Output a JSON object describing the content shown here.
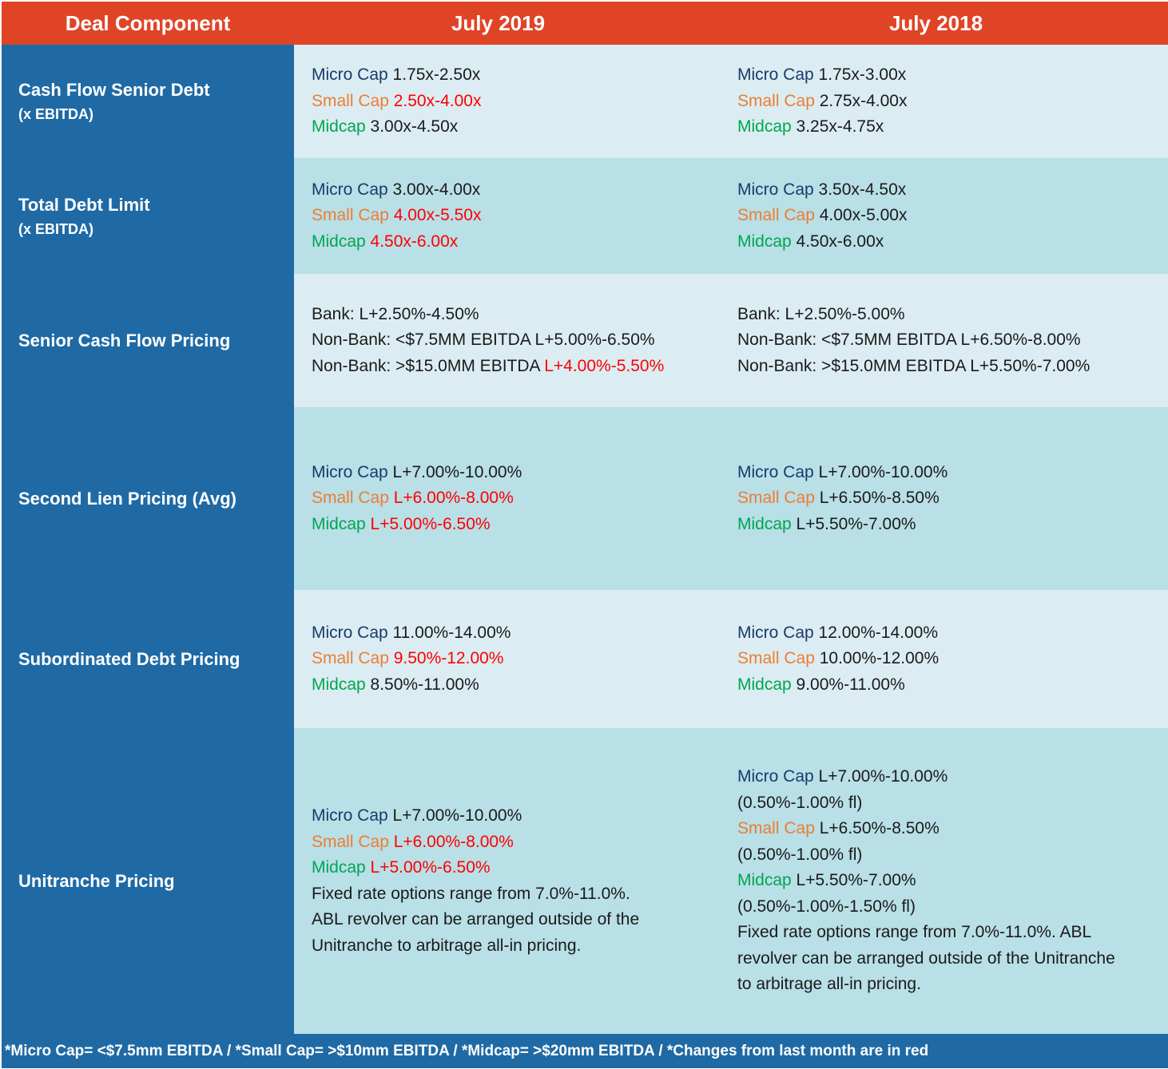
{
  "header": {
    "col1": "Deal Component",
    "col2": "July  2019",
    "col3": "July 2018"
  },
  "labels": {
    "micro": "Micro Cap",
    "small": "Small Cap",
    "mid": "Midcap"
  },
  "rows": {
    "cash_flow_senior": {
      "label": "Cash Flow Senior Debt",
      "sub": "(x EBITDA)",
      "y2019": {
        "micro": "1.75x-2.50x",
        "small": "2.50x-4.00x",
        "mid": "3.00x-4.50x"
      },
      "y2018": {
        "micro": "1.75x-3.00x",
        "small": "2.75x-4.00x",
        "mid": "3.25x-4.75x"
      }
    },
    "total_debt": {
      "label": "Total Debt Limit",
      "sub": "(x EBITDA)",
      "y2019": {
        "micro": "3.00x-4.00x",
        "small": "4.00x-5.50x",
        "mid": "4.50x-6.00x"
      },
      "y2018": {
        "micro": "3.50x-4.50x",
        "small": "4.00x-5.00x",
        "mid": "4.50x-6.00x"
      }
    },
    "senior_pricing": {
      "label": "Senior Cash Flow Pricing",
      "y2019": {
        "bank": "Bank: L+2.50%-4.50%",
        "nonbank1": "Non-Bank: <$7.5MM EBITDA L+5.00%-6.50%",
        "nonbank2_prefix": "Non-Bank: >$15.0MM EBITDA ",
        "nonbank2_value": "L+4.00%-5.50%"
      },
      "y2018": {
        "bank": "Bank: L+2.50%-5.00%",
        "nonbank1": "Non-Bank: <$7.5MM EBITDA L+6.50%-8.00%",
        "nonbank2": "Non-Bank: >$15.0MM EBITDA L+5.50%-7.00%"
      }
    },
    "second_lien": {
      "label": "Second Lien Pricing (Avg)",
      "y2019": {
        "micro": "L+7.00%-10.00%",
        "small": "L+6.00%-8.00%",
        "mid": "L+5.00%-6.50%"
      },
      "y2018": {
        "micro": "L+7.00%-10.00%",
        "small": "L+6.50%-8.50%",
        "mid": "L+5.50%-7.00%"
      }
    },
    "subordinated": {
      "label": "Subordinated Debt Pricing",
      "y2019": {
        "micro": "11.00%-14.00%",
        "small": "9.50%-12.00%",
        "mid": "8.50%-11.00%"
      },
      "y2018": {
        "micro": "12.00%-14.00%",
        "small": "10.00%-12.00%",
        "mid": "9.00%-11.00%"
      }
    },
    "unitranche": {
      "label": "Unitranche Pricing",
      "y2019": {
        "micro": "L+7.00%-10.00%",
        "small": "L+6.00%-8.00%",
        "mid": "L+5.00%-6.50%",
        "note1": "Fixed rate options range from 7.0%-11.0%.",
        "note2": "ABL revolver can be arranged outside of the",
        "note3": "Unitranche to arbitrage all-in pricing."
      },
      "y2018": {
        "micro": "L+7.00%-10.00%",
        "micro_fl": "(0.50%-1.00% fl)",
        "small": "L+6.50%-8.50%",
        "small_fl": "(0.50%-1.00% fl)",
        "mid": "L+5.50%-7.00%",
        "mid_fl": "(0.50%-1.00%-1.50% fl)",
        "note1": "Fixed rate options range from 7.0%-11.0%. ABL",
        "note2": "revolver can be arranged outside of the Unitranche",
        "note3": "to arbitrage all-in pricing."
      }
    }
  },
  "footer": "*Micro Cap= <$7.5mm EBITDA / *Small Cap= >$10mm EBITDA / *Midcap= >$20mm EBITDA / *Changes from last month are in red",
  "colors": {
    "header_bg": "#e04426",
    "label_bg": "#1f6aa5",
    "row_light": "#dbedf2",
    "row_dark": "#b9dfe7",
    "micro": "#1b3a6b",
    "small": "#ed7d31",
    "mid": "#00a651",
    "change": "#ff0000"
  }
}
